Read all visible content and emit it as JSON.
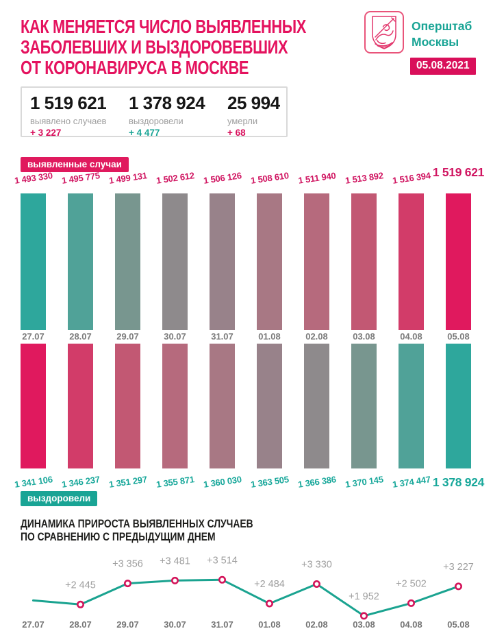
{
  "header": {
    "title_lines": [
      "КАК МЕНЯЕТСЯ ЧИСЛО ВЫЯВЛЕННЫХ",
      "ЗАБОЛЕВШИХ И ВЫЗДОРОВЕВШИХ",
      "ОТ КОРОНАВИРУСА В МОСКВЕ"
    ],
    "org_lines": [
      "Оперштаб",
      "Москвы"
    ],
    "date_badge": "05.08.2021",
    "logo": "moscow-coat-of-arms"
  },
  "colors": {
    "crimson": "#e01a5e",
    "teal": "#19a495",
    "title_pink": "#e4125e",
    "label_gray": "#9e9e9e",
    "date_gray": "#7c7c7c",
    "black": "#1d1d1b",
    "box_border": "#d9d9d9"
  },
  "summary": {
    "items": [
      {
        "value": "1 519 621",
        "label": "выявлено случаев",
        "delta": "+ 3 227",
        "delta_color": "#d8105c"
      },
      {
        "value": "1 378 924",
        "label": "выздоровели",
        "delta": "+ 4 477",
        "delta_color": "#19a495"
      },
      {
        "value": "25 994",
        "label": "умерли",
        "delta": "+ 68",
        "delta_color": "#d8105c"
      }
    ]
  },
  "chart_data": [
    {
      "type": "bar",
      "badge_top": "выявленные случаи",
      "badge_bottom": "выздоровели",
      "categories": [
        "27.07",
        "28.07",
        "29.07",
        "30.07",
        "31.07",
        "01.08",
        "02.08",
        "03.08",
        "04.08",
        "05.08"
      ],
      "series": [
        {
          "name": "выявленные случаи",
          "values": [
            1493330,
            1495775,
            1499131,
            1502612,
            1506126,
            1508610,
            1511940,
            1513892,
            1516394,
            1519621
          ],
          "labels": [
            "1 493 330",
            "1 495 775",
            "1 499 131",
            "1 502 612",
            "1 506 126",
            "1 508 610",
            "1 511 940",
            "1 513 892",
            "1 516 394",
            "1 519 621"
          ],
          "label_color": "#d01561",
          "colors": [
            "#2ea79c",
            "#50a298",
            "#78968f",
            "#8e8a8c",
            "#98828a",
            "#a87884",
            "#b66a7d",
            "#c25873",
            "#d23c69",
            "#e0195e"
          ]
        },
        {
          "name": "выздоровели",
          "values": [
            1341106,
            1346237,
            1351297,
            1355871,
            1360030,
            1363505,
            1366386,
            1370145,
            1374447,
            1378924
          ],
          "labels": [
            "1 341 106",
            "1 346 237",
            "1 351 297",
            "1 355 871",
            "1 360 030",
            "1 363 505",
            "1 366 386",
            "1 370 145",
            "1 374 447",
            "1 378 924"
          ],
          "label_color": "#17a79a",
          "colors": [
            "#e0195e",
            "#d23c69",
            "#c25873",
            "#b66a7d",
            "#a87884",
            "#98828a",
            "#8e8a8c",
            "#78968f",
            "#50a298",
            "#2ea79c"
          ]
        }
      ],
      "bar_style": "uniform-height decorative bars; magnitudes conveyed by the printed labels",
      "legend_position": "series badges at top-left and bottom-left"
    },
    {
      "type": "line",
      "title_lines": [
        "ДИНАМИКА ПРИРОСТА ВЫЯВЛЕННЫХ СЛУЧАЕВ",
        "ПО СРАВНЕНИЮ С ПРЕДЫДУЩИМ ДНЕМ"
      ],
      "x": [
        "27.07",
        "28.07",
        "29.07",
        "30.07",
        "31.07",
        "01.08",
        "02.08",
        "03.08",
        "04.08",
        "05.08"
      ],
      "values": [
        2620,
        2445,
        3356,
        3481,
        3514,
        2484,
        3330,
        1952,
        2502,
        3227
      ],
      "labels": [
        "",
        "+2 445",
        "+3 356",
        "+3 481",
        "+3 514",
        "+2 484",
        "+3 330",
        "+1 952",
        "+2 502",
        "+3 227"
      ],
      "first_value_estimated": true,
      "ylim": [
        1800,
        3700
      ],
      "grid": false,
      "legend_position": "none",
      "line_color": "#1aa390",
      "marker_color": "#d4145a"
    }
  ]
}
